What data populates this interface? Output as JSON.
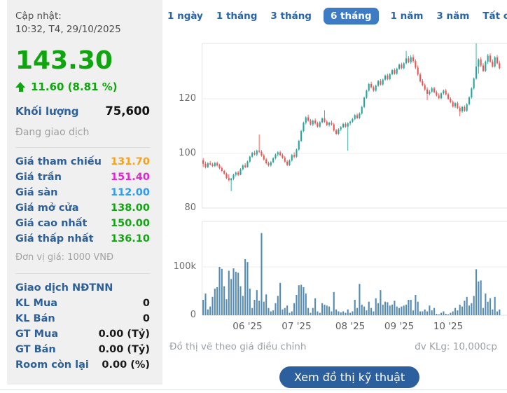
{
  "sidebar": {
    "updated_label": "Cập nhật:",
    "updated_value": "10:32, T4, 29/10/2025",
    "price": "143.30",
    "change": "11.60 (8.81 %)",
    "volume_label": "Khối lượng",
    "volume_value": "75,600",
    "status": "Đang giao dịch",
    "price_rows": [
      {
        "label": "Giá tham chiếu",
        "value": "131.70",
        "color": "#f5a31e"
      },
      {
        "label": "Giá trần",
        "value": "151.40",
        "color": "#e028ce"
      },
      {
        "label": "Giá sàn",
        "value": "112.00",
        "color": "#2f9bf3"
      },
      {
        "label": "Giá mở cửa",
        "value": "138.00",
        "color": "#13a413"
      },
      {
        "label": "Giá cao nhất",
        "value": "150.00",
        "color": "#13a413"
      },
      {
        "label": "Giá thấp nhất",
        "value": "136.10",
        "color": "#13a413"
      }
    ],
    "unit_note": "Đơn vị giá: 1000 VNĐ",
    "foreign_header": "Giao dịch NĐTNN",
    "foreign_rows": [
      {
        "label": "KL Mua",
        "value": "0"
      },
      {
        "label": "KL Bán",
        "value": "0"
      },
      {
        "label": "GT Mua",
        "value": "0.00 (Tỷ)"
      },
      {
        "label": "GT Bán",
        "value": "0.00 (Tỷ)"
      },
      {
        "label": "Room còn lại",
        "value": "0.00 (%)"
      }
    ]
  },
  "tabs": {
    "items": [
      "1 ngày",
      "1 tháng",
      "3 tháng",
      "6 tháng",
      "1 năm",
      "3 năm",
      "Tất cả"
    ],
    "active_index": 3
  },
  "footer": {
    "left_note": "Đồ thị vẽ theo giá điều chỉnh",
    "right_note": "đv KLg: 10,000cp",
    "button_label": "Xem đồ thị kỹ thuật"
  },
  "colors": {
    "up": "#26a69a",
    "down": "#ef5350",
    "volume_bar": "#548bb4",
    "price_green": "#0fa50f",
    "label_blue": "#2d5f9b",
    "tab_active_bg": "#3d7cc4",
    "button_bg": "#2c5f9e",
    "grid": "#ededed",
    "axis_border": "#e3e3e3"
  },
  "chart_data": {
    "type": "candlestick",
    "title": "",
    "x_labels": [
      "06 '25",
      "07 '25",
      "08 '25",
      "09 '25",
      "10 '25"
    ],
    "x_label_indices": [
      19,
      40,
      63,
      84,
      105
    ],
    "price_axis": {
      "ticks": [
        120,
        100,
        80
      ],
      "min": 80,
      "max": 140.3
    },
    "volume_axis": {
      "ticks": [
        {
          "label": "100k",
          "k": 100
        },
        {
          "label": "0",
          "k": 0
        }
      ],
      "max_k": 194
    },
    "candles": [
      [
        97.5,
        98.3,
        95.0,
        96.2
      ],
      [
        96.2,
        97.0,
        94.5,
        95.0
      ],
      [
        95.0,
        96.8,
        94.6,
        96.4
      ],
      [
        96.4,
        97.2,
        95.6,
        96.0
      ],
      [
        96.0,
        96.6,
        95.0,
        95.4
      ],
      [
        95.4,
        96.9,
        95.0,
        96.5
      ],
      [
        96.5,
        97.0,
        95.2,
        95.6
      ],
      [
        95.6,
        96.2,
        94.2,
        94.6
      ],
      [
        94.6,
        95.2,
        93.2,
        93.6
      ],
      [
        93.6,
        94.0,
        92.2,
        92.6
      ],
      [
        92.6,
        93.0,
        90.6,
        91.0
      ],
      [
        91.0,
        92.4,
        89.8,
        90.2
      ],
      [
        90.2,
        91.0,
        86.2,
        90.8
      ],
      [
        90.8,
        92.6,
        90.2,
        92.2
      ],
      [
        92.2,
        93.4,
        91.6,
        93.0
      ],
      [
        93.0,
        93.6,
        91.8,
        92.2
      ],
      [
        92.2,
        94.6,
        92.0,
        94.2
      ],
      [
        94.2,
        96.0,
        93.8,
        95.6
      ],
      [
        95.6,
        96.4,
        94.6,
        95.0
      ],
      [
        95.0,
        97.4,
        94.8,
        97.0
      ],
      [
        97.0,
        99.2,
        96.6,
        98.8
      ],
      [
        98.8,
        100.6,
        98.4,
        100.2
      ],
      [
        100.2,
        101.0,
        99.2,
        99.6
      ],
      [
        99.6,
        101.4,
        99.0,
        101.0
      ],
      [
        101.0,
        106.9,
        100.2,
        100.6
      ],
      [
        100.6,
        101.2,
        98.8,
        99.2
      ],
      [
        99.2,
        99.8,
        97.4,
        97.8
      ],
      [
        97.8,
        98.4,
        96.0,
        96.4
      ],
      [
        96.4,
        97.0,
        95.2,
        95.6
      ],
      [
        95.6,
        97.2,
        95.2,
        96.8
      ],
      [
        96.8,
        98.6,
        96.4,
        98.2
      ],
      [
        98.2,
        100.0,
        97.8,
        99.6
      ],
      [
        99.6,
        100.8,
        99.0,
        100.4
      ],
      [
        100.4,
        101.0,
        99.0,
        99.4
      ],
      [
        99.4,
        100.0,
        98.0,
        98.4
      ],
      [
        98.4,
        99.0,
        96.6,
        97.0
      ],
      [
        97.0,
        97.6,
        95.4,
        95.8
      ],
      [
        95.8,
        97.8,
        95.4,
        97.4
      ],
      [
        97.4,
        99.8,
        97.0,
        99.4
      ],
      [
        99.4,
        100.4,
        98.2,
        98.8
      ],
      [
        98.8,
        101.8,
        98.4,
        101.4
      ],
      [
        101.4,
        105.0,
        101.0,
        104.6
      ],
      [
        104.6,
        108.6,
        104.2,
        108.2
      ],
      [
        108.2,
        111.6,
        107.8,
        111.2
      ],
      [
        111.2,
        113.6,
        110.6,
        113.2
      ],
      [
        113.2,
        114.2,
        111.6,
        112.0
      ],
      [
        112.0,
        112.6,
        110.2,
        110.6
      ],
      [
        110.6,
        112.4,
        110.0,
        112.0
      ],
      [
        112.0,
        112.8,
        110.6,
        111.0
      ],
      [
        111.0,
        111.6,
        109.4,
        109.8
      ],
      [
        109.8,
        111.8,
        109.4,
        111.4
      ],
      [
        111.4,
        113.2,
        111.0,
        112.8
      ],
      [
        112.8,
        115.8,
        111.2,
        111.6
      ],
      [
        111.6,
        112.2,
        110.0,
        110.4
      ],
      [
        110.4,
        111.6,
        109.8,
        111.2
      ],
      [
        111.2,
        112.0,
        110.2,
        110.6
      ],
      [
        110.6,
        111.2,
        108.0,
        108.4
      ],
      [
        108.4,
        109.0,
        106.8,
        107.2
      ],
      [
        107.2,
        109.2,
        106.8,
        108.8
      ],
      [
        108.8,
        110.0,
        108.2,
        109.6
      ],
      [
        109.6,
        111.2,
        109.2,
        110.8
      ],
      [
        110.8,
        111.4,
        109.4,
        109.8
      ],
      [
        109.8,
        111.4,
        101.0,
        111.0
      ],
      [
        111.0,
        112.0,
        110.2,
        111.6
      ],
      [
        111.6,
        113.0,
        111.2,
        112.6
      ],
      [
        112.6,
        114.4,
        112.2,
        114.0
      ],
      [
        114.0,
        114.6,
        112.6,
        113.0
      ],
      [
        113.0,
        115.0,
        112.6,
        114.6
      ],
      [
        114.6,
        117.4,
        114.2,
        117.0
      ],
      [
        117.0,
        120.8,
        116.6,
        120.4
      ],
      [
        120.4,
        123.4,
        120.0,
        123.0
      ],
      [
        123.0,
        125.8,
        122.6,
        125.4
      ],
      [
        125.4,
        126.2,
        123.8,
        124.2
      ],
      [
        124.2,
        124.8,
        122.6,
        123.0
      ],
      [
        123.0,
        125.2,
        122.6,
        124.8
      ],
      [
        124.8,
        126.9,
        124.4,
        126.5
      ],
      [
        126.5,
        127.2,
        124.8,
        125.2
      ],
      [
        125.2,
        127.4,
        124.8,
        127.0
      ],
      [
        127.0,
        128.9,
        126.6,
        128.5
      ],
      [
        128.5,
        129.2,
        126.8,
        127.2
      ],
      [
        127.2,
        129.4,
        126.8,
        129.0
      ],
      [
        129.0,
        130.9,
        128.6,
        130.5
      ],
      [
        130.5,
        131.2,
        128.8,
        129.2
      ],
      [
        129.2,
        131.4,
        128.8,
        131.0
      ],
      [
        131.0,
        132.9,
        130.6,
        132.5
      ],
      [
        132.5,
        133.2,
        130.8,
        131.2
      ],
      [
        131.2,
        133.4,
        130.8,
        133.0
      ],
      [
        133.0,
        137.5,
        132.6,
        134.8
      ],
      [
        134.8,
        135.6,
        133.0,
        133.4
      ],
      [
        133.4,
        136.0,
        132.8,
        135.2
      ],
      [
        135.2,
        136.2,
        133.2,
        133.8
      ],
      [
        133.8,
        134.4,
        130.9,
        131.4
      ],
      [
        131.4,
        132.2,
        128.4,
        128.9
      ],
      [
        128.9,
        129.6,
        126.0,
        126.4
      ],
      [
        126.4,
        127.2,
        124.6,
        125.0
      ],
      [
        125.0,
        125.6,
        122.9,
        123.4
      ],
      [
        123.4,
        124.2,
        119.5,
        121.8
      ],
      [
        121.8,
        123.2,
        121.2,
        122.6
      ],
      [
        122.6,
        124.4,
        122.2,
        123.8
      ],
      [
        123.8,
        124.4,
        122.0,
        122.4
      ],
      [
        122.4,
        123.0,
        120.8,
        121.2
      ],
      [
        121.2,
        122.0,
        119.8,
        120.2
      ],
      [
        120.2,
        122.4,
        119.8,
        122.0
      ],
      [
        122.0,
        123.4,
        121.4,
        123.0
      ],
      [
        123.0,
        123.6,
        121.2,
        121.6
      ],
      [
        121.6,
        122.2,
        119.6,
        120.0
      ],
      [
        120.0,
        120.6,
        118.4,
        118.8
      ],
      [
        118.8,
        119.4,
        116.8,
        117.2
      ],
      [
        117.2,
        118.8,
        116.6,
        118.4
      ],
      [
        118.4,
        119.0,
        116.2,
        116.6
      ],
      [
        116.6,
        117.2,
        113.6,
        115.4
      ],
      [
        115.4,
        117.4,
        114.9,
        117.0
      ],
      [
        117.0,
        117.6,
        115.2,
        115.6
      ],
      [
        115.6,
        118.4,
        115.2,
        118.0
      ],
      [
        118.0,
        120.9,
        117.6,
        120.5
      ],
      [
        120.5,
        124.2,
        120.1,
        123.8
      ],
      [
        123.8,
        127.8,
        123.4,
        127.4
      ],
      [
        127.4,
        140.3,
        127.0,
        131.8
      ],
      [
        131.8,
        134.8,
        129.2,
        134.4
      ],
      [
        134.4,
        135.2,
        131.6,
        132.2
      ],
      [
        132.2,
        133.0,
        129.8,
        130.2
      ],
      [
        130.2,
        134.0,
        129.8,
        133.6
      ],
      [
        133.6,
        136.4,
        132.8,
        135.8
      ],
      [
        135.8,
        136.6,
        133.2,
        133.6
      ],
      [
        133.6,
        134.4,
        131.4,
        131.8
      ],
      [
        131.8,
        135.6,
        131.4,
        135.2
      ],
      [
        135.2,
        136.0,
        132.6,
        133.0
      ],
      [
        133.0,
        133.8,
        130.8,
        131.2
      ]
    ],
    "volumes_k": [
      32,
      45,
      12,
      18,
      38,
      55,
      58,
      100,
      96,
      60,
      33,
      92,
      75,
      97,
      90,
      88,
      60,
      40,
      116,
      110,
      55,
      15,
      32,
      52,
      30,
      170,
      28,
      43,
      15,
      8,
      10,
      25,
      40,
      67,
      12,
      15,
      20,
      5,
      8,
      25,
      42,
      62,
      63,
      58,
      45,
      15,
      5,
      15,
      35,
      8,
      5,
      25,
      22,
      20,
      18,
      8,
      48,
      12,
      8,
      6,
      8,
      5,
      12,
      5,
      8,
      32,
      15,
      65,
      22,
      18,
      10,
      28,
      15,
      8,
      35,
      25,
      52,
      22,
      28,
      27,
      20,
      22,
      30,
      18,
      15,
      18,
      20,
      22,
      32,
      32,
      10,
      42,
      28,
      8,
      8,
      12,
      8,
      20,
      10,
      15,
      3,
      2,
      5,
      8,
      3,
      2,
      5,
      8,
      15,
      10,
      22,
      18,
      30,
      38,
      20,
      25,
      40,
      95,
      70,
      72,
      15,
      45,
      28,
      35,
      12,
      38,
      8,
      12
    ]
  }
}
